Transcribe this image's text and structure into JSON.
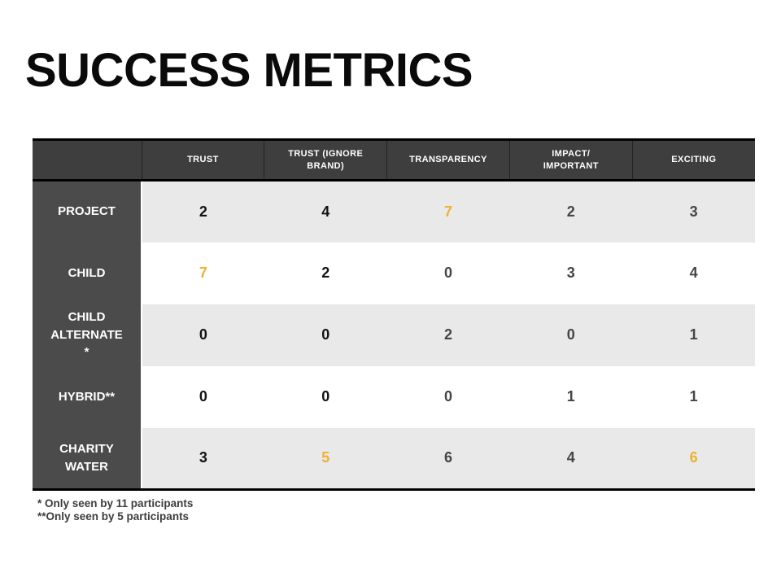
{
  "slide_title": "SUCCESS METRICS",
  "table": {
    "columns": [
      "TRUST",
      "TRUST (IGNORE\nBRAND)",
      "TRANSPARENCY",
      "IMPACT/\nIMPORTANT",
      "EXCITING"
    ],
    "rows": [
      {
        "label": "PROJECT",
        "cells": [
          {
            "v": "2",
            "t": "black"
          },
          {
            "v": "4",
            "t": "black"
          },
          {
            "v": "7",
            "t": "accent"
          },
          {
            "v": "2",
            "t": "gray"
          },
          {
            "v": "3",
            "t": "gray"
          }
        ]
      },
      {
        "label": "CHILD",
        "cells": [
          {
            "v": "7",
            "t": "accent"
          },
          {
            "v": "2",
            "t": "black"
          },
          {
            "v": "0",
            "t": "gray"
          },
          {
            "v": "3",
            "t": "gray"
          },
          {
            "v": "4",
            "t": "gray"
          }
        ]
      },
      {
        "label": "CHILD\nALTERNATE\n*",
        "cells": [
          {
            "v": "0",
            "t": "black"
          },
          {
            "v": "0",
            "t": "black"
          },
          {
            "v": "2",
            "t": "gray"
          },
          {
            "v": "0",
            "t": "gray"
          },
          {
            "v": "1",
            "t": "gray"
          }
        ]
      },
      {
        "label": "HYBRID**",
        "cells": [
          {
            "v": "0",
            "t": "black"
          },
          {
            "v": "0",
            "t": "black"
          },
          {
            "v": "0",
            "t": "gray"
          },
          {
            "v": "1",
            "t": "gray"
          },
          {
            "v": "1",
            "t": "gray"
          }
        ]
      },
      {
        "label": "CHARITY\nWATER",
        "cells": [
          {
            "v": "3",
            "t": "black"
          },
          {
            "v": "5",
            "t": "accent"
          },
          {
            "v": "6",
            "t": "gray"
          },
          {
            "v": "4",
            "t": "gray"
          },
          {
            "v": "6",
            "t": "accent"
          }
        ]
      }
    ]
  },
  "footnotes": [
    "* Only seen by 11 participants",
    "**Only seen by 5 participants"
  ],
  "colors": {
    "accent": "#EDB231",
    "header_bg": "#3E3E3E",
    "row_label_bg": "#4B4B4B",
    "alt_row_bg": "#E9E9E9",
    "number_gray": "#454545",
    "number_black": "#121212"
  },
  "chart_data": {
    "type": "table",
    "title": "SUCCESS METRICS",
    "columns": [
      "TRUST",
      "TRUST (IGNORE BRAND)",
      "TRANSPARENCY",
      "IMPACT/IMPORTANT",
      "EXCITING"
    ],
    "rows": [
      "PROJECT",
      "CHILD",
      "CHILD ALTERNATE *",
      "HYBRID**",
      "CHARITY WATER"
    ],
    "values": [
      [
        2,
        4,
        7,
        2,
        3
      ],
      [
        7,
        2,
        0,
        3,
        4
      ],
      [
        0,
        0,
        2,
        0,
        1
      ],
      [
        0,
        0,
        0,
        1,
        1
      ],
      [
        3,
        5,
        6,
        4,
        6
      ]
    ],
    "highlighted_cells": [
      [
        0,
        2
      ],
      [
        1,
        0
      ],
      [
        4,
        1
      ],
      [
        4,
        4
      ]
    ],
    "highlight_color": "#EDB231"
  }
}
